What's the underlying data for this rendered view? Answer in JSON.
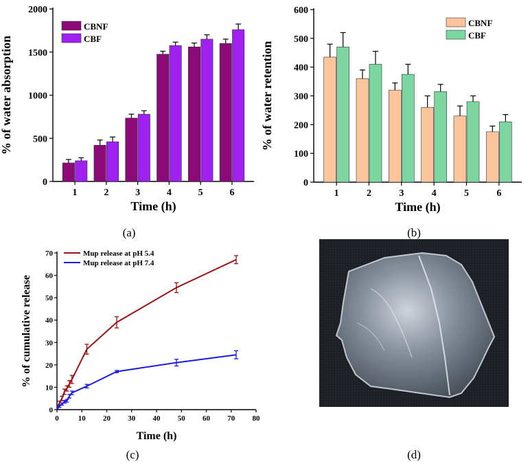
{
  "colors": {
    "cbnf_a": "#8b0a78",
    "cbf_a": "#a020f0",
    "cbnf_b": "#fbc49a",
    "cbf_b": "#7dd6a0",
    "ph54": "#a01010",
    "ph74": "#1a1ae6"
  },
  "panels": {
    "a": "(a)",
    "b": "(b)",
    "c": "(c)",
    "d": "(d)"
  },
  "photo": {
    "icon": "hydrogel-film-photo"
  },
  "chart_data": [
    {
      "id": "a",
      "type": "bar",
      "title": "",
      "xlabel": "Time (h)",
      "ylabel": "% of water absorption",
      "categories": [
        "1",
        "2",
        "3",
        "4",
        "5",
        "6"
      ],
      "ylim": [
        0,
        2000
      ],
      "yticks": [
        0,
        500,
        1000,
        1500,
        2000
      ],
      "legend_position": "top-left",
      "series": [
        {
          "name": "CBNF",
          "values": [
            215,
            420,
            735,
            1475,
            1560,
            1600
          ],
          "errors": [
            40,
            60,
            45,
            35,
            45,
            50
          ]
        },
        {
          "name": "CBF",
          "values": [
            240,
            460,
            780,
            1575,
            1650,
            1760
          ],
          "errors": [
            35,
            55,
            40,
            40,
            50,
            65
          ]
        }
      ]
    },
    {
      "id": "b",
      "type": "bar",
      "title": "",
      "xlabel": "Time (h)",
      "ylabel": "% of water retention",
      "categories": [
        "1",
        "2",
        "3",
        "4",
        "5",
        "6"
      ],
      "ylim": [
        0,
        600
      ],
      "yticks": [
        0,
        100,
        200,
        300,
        400,
        500,
        600
      ],
      "legend_position": "top-right",
      "series": [
        {
          "name": "CBNF",
          "values": [
            435,
            360,
            320,
            260,
            230,
            175
          ],
          "errors": [
            45,
            30,
            25,
            40,
            35,
            20
          ]
        },
        {
          "name": "CBF",
          "values": [
            470,
            410,
            375,
            315,
            280,
            210
          ],
          "errors": [
            50,
            45,
            35,
            25,
            20,
            25
          ]
        }
      ]
    },
    {
      "id": "c",
      "type": "line",
      "title": "",
      "xlabel": "Time (h)",
      "ylabel": "% of cumulative release",
      "xlim": [
        0,
        80
      ],
      "ylim": [
        0,
        70
      ],
      "xticks": [
        0,
        10,
        20,
        30,
        40,
        50,
        60,
        70,
        80
      ],
      "yticks": [
        0,
        10,
        20,
        30,
        40,
        50,
        60,
        70
      ],
      "legend_position": "top-left",
      "series": [
        {
          "name": "Mup release at pH 5.4",
          "x": [
            0,
            1,
            2,
            3,
            4,
            5,
            6,
            12,
            24,
            48,
            72
          ],
          "y": [
            0,
            3,
            5,
            8,
            9.5,
            11.5,
            13.5,
            27,
            39,
            54.5,
            67
          ],
          "errors": [
            0,
            0.8,
            1,
            1.2,
            1.2,
            1.5,
            1.8,
            2.2,
            2.5,
            2.2,
            1.8
          ]
        },
        {
          "name": "Mup release at pH 7.4",
          "x": [
            0,
            1,
            2,
            3,
            4,
            5,
            6,
            12,
            24,
            48,
            72
          ],
          "y": [
            0,
            1.5,
            2.5,
            3.5,
            4,
            6,
            7.5,
            10.5,
            17,
            21,
            24.5
          ],
          "errors": [
            0,
            0.5,
            0.5,
            0.6,
            0.6,
            0.8,
            0.8,
            0.8,
            0.5,
            1.5,
            1.8
          ]
        }
      ]
    }
  ]
}
